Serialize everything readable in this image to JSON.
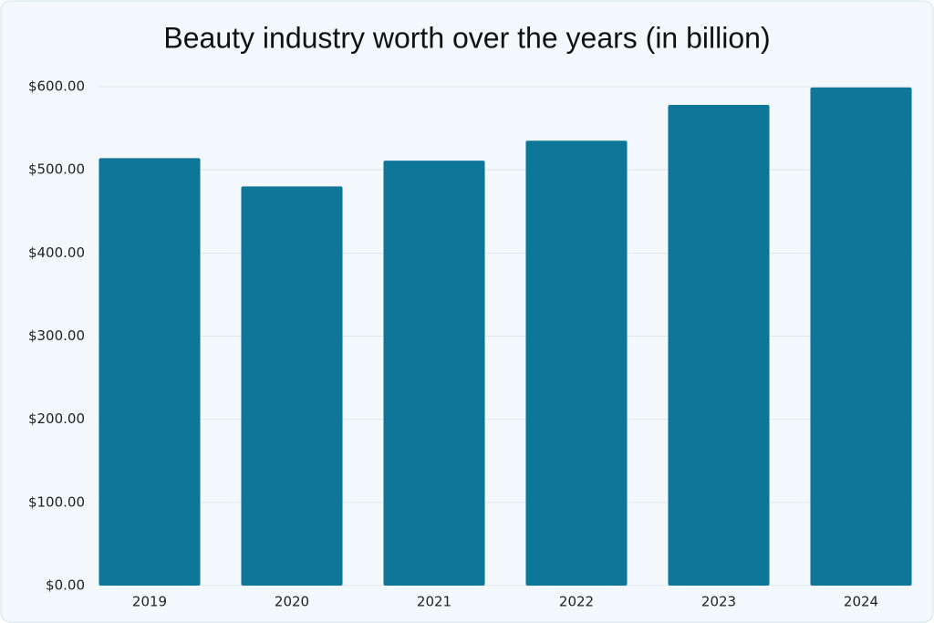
{
  "chart_data": {
    "type": "bar",
    "title": "Beauty industry worth over the years (in billion)",
    "categories": [
      "2019",
      "2020",
      "2021",
      "2022",
      "2023",
      "2024"
    ],
    "values": [
      514,
      480,
      511,
      535,
      578,
      599
    ],
    "color": "#0e7699",
    "ylim": [
      0,
      600
    ],
    "yticks": [
      {
        "value": 0,
        "label": "$0.00"
      },
      {
        "value": 100,
        "label": "$100.00"
      },
      {
        "value": 200,
        "label": "$200.00"
      },
      {
        "value": 300,
        "label": "$300.00"
      },
      {
        "value": 400,
        "label": "$400.00"
      },
      {
        "value": 500,
        "label": "$500.00"
      },
      {
        "value": 600,
        "label": "$600.00"
      }
    ],
    "grid": true
  }
}
